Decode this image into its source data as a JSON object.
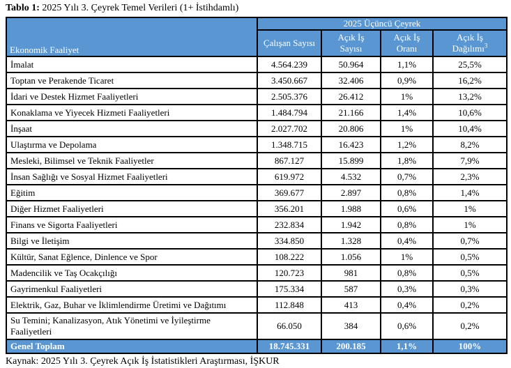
{
  "title": {
    "prefix": "Tablo 1:",
    "text": " 2025 Yılı 3. Çeyrek Temel Verileri (1+ İstihdamlı)"
  },
  "source_note": "Kaynak: 2025 Yılı 3. Çeyrek Açık İş İstatistikleri Araştırması, İŞKUR",
  "colors": {
    "header_blue": "#5A96D2",
    "border_black": "#000000",
    "header_text": "#ffffff"
  },
  "table": {
    "headers": {
      "activity": "Ekonomik Faaliyet",
      "group": "2025 Üçüncü Çeyrek",
      "employees": "Çalışan Sayısı",
      "vacancies": {
        "line1": "Açık İş",
        "line2": "Sayısı"
      },
      "rate": {
        "line1": "Açık İş",
        "line2": "Oranı"
      },
      "distribution": {
        "line1": "Açık İş",
        "line2": "Dağılımı",
        "sup": "3"
      }
    },
    "rows": [
      {
        "label": "İmalat",
        "employees": "4.564.239",
        "vacancies": "50.964",
        "rate": "1,1%",
        "distribution": "25,5%"
      },
      {
        "label": "Toptan ve Perakende Ticaret",
        "employees": "3.450.667",
        "vacancies": "32.406",
        "rate": "0,9%",
        "distribution": "16,2%"
      },
      {
        "label": "İdari ve Destek Hizmet Faaliyetleri",
        "employees": "2.505.376",
        "vacancies": "26.412",
        "rate": "1%",
        "distribution": "13,2%"
      },
      {
        "label": "Konaklama ve Yiyecek Hizmeti Faaliyetleri",
        "employees": "1.484.794",
        "vacancies": "21.166",
        "rate": "1,4%",
        "distribution": "10,6%"
      },
      {
        "label": "İnşaat",
        "employees": "2.027.702",
        "vacancies": "20.806",
        "rate": "1%",
        "distribution": "10,4%"
      },
      {
        "label": "Ulaştırma ve Depolama",
        "employees": "1.348.715",
        "vacancies": "16.423",
        "rate": "1,2%",
        "distribution": "8,2%"
      },
      {
        "label": "Mesleki, Bilimsel ve Teknik Faaliyetler",
        "employees": "867.127",
        "vacancies": "15.899",
        "rate": "1,8%",
        "distribution": "7,9%"
      },
      {
        "label": "İnsan Sağlığı ve Sosyal Hizmet Faaliyetleri",
        "employees": "619.972",
        "vacancies": "4.532",
        "rate": "0,7%",
        "distribution": "2,3%"
      },
      {
        "label": "Eğitim",
        "employees": "369.677",
        "vacancies": "2.897",
        "rate": "0,8%",
        "distribution": "1,4%"
      },
      {
        "label": "Diğer Hizmet Faaliyetleri",
        "employees": "356.201",
        "vacancies": "1.988",
        "rate": "0,6%",
        "distribution": "1%"
      },
      {
        "label": "Finans ve Sigorta Faaliyetleri",
        "employees": "232.834",
        "vacancies": "1.942",
        "rate": "0,8%",
        "distribution": "1%"
      },
      {
        "label": "Bilgi ve İletişim",
        "employees": "334.850",
        "vacancies": "1.328",
        "rate": "0,4%",
        "distribution": "0,7%"
      },
      {
        "label": "Kültür, Sanat Eğlence, Dinlence ve Spor",
        "employees": "108.222",
        "vacancies": "1.056",
        "rate": "1%",
        "distribution": "0,5%"
      },
      {
        "label": "Madencilik ve Taş Ocakçılığı",
        "employees": "120.723",
        "vacancies": "981",
        "rate": "0,8%",
        "distribution": "0,5%"
      },
      {
        "label": "Gayrimenkul Faaliyetleri",
        "employees": "175.334",
        "vacancies": "587",
        "rate": "0,3%",
        "distribution": "0,3%"
      },
      {
        "label": "Elektrik, Gaz, Buhar ve İklimlendirme Üretimi ve Dağıtımı",
        "employees": "112.848",
        "vacancies": "413",
        "rate": "0,4%",
        "distribution": "0,2%"
      },
      {
        "label": "Su Temini; Kanalizasyon, Atık Yönetimi ve İyileştirme Faaliyetleri",
        "employees": "66.050",
        "vacancies": "384",
        "rate": "0,6%",
        "distribution": "0,2%"
      }
    ],
    "total": {
      "label": "Genel Toplam",
      "employees": "18.745.331",
      "vacancies": "200.185",
      "rate": "1,1%",
      "distribution": "100%"
    }
  }
}
